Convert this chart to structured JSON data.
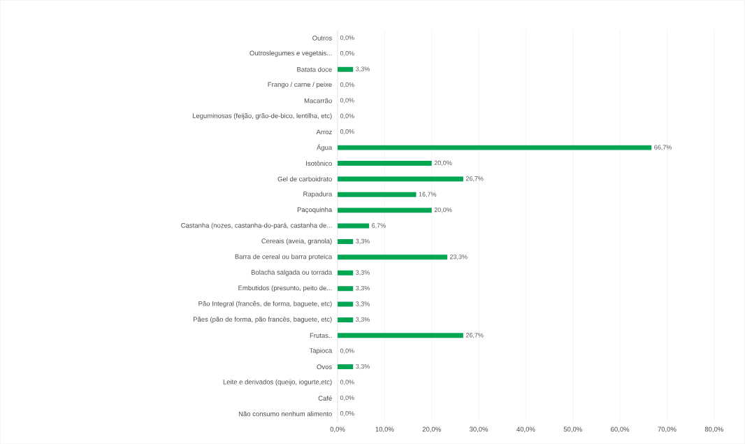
{
  "chart_data": {
    "type": "bar",
    "orientation": "horizontal",
    "color": "#00a651",
    "grid": "x",
    "categories": [
      "Outros",
      "Outroslegumes e vegetais...",
      "Batata doce",
      "Frango / carne / peixe",
      "Macarrão",
      "Leguminosas (feijão, grão-de-bico, lentilha, etc)",
      "Arroz",
      "Água",
      "Isotônico",
      "Gel de carboidrato",
      "Rapadura",
      "Paçoquinha",
      "Castanha (nozes, castanha-do-pará, castanha de...",
      "Cereais (aveia, granola)",
      "Barra de cereal ou barra proteica",
      "Bolacha salgada ou torrada",
      "Embutidos (presunto, peito de...",
      "Pão Integral (francês, de forma, baguete, etc)",
      "Pães (pão de forma, pão francês, baguete, etc)",
      "Frutas..",
      "Tapioca",
      "Ovos",
      "Leite e derivados (queijo, iogurte,etc)",
      "Café",
      "Não consumo nenhum alimento"
    ],
    "values": [
      0,
      0,
      3.3,
      0,
      0,
      0,
      0,
      66.7,
      20,
      26.7,
      16.7,
      20,
      6.7,
      3.3,
      23.3,
      3.3,
      3.3,
      3.3,
      3.3,
      26.7,
      0,
      3.3,
      0,
      0,
      0
    ],
    "value_labels": [
      "0,0%",
      "0,0%",
      "3,3%",
      "0,0%",
      "0,0%",
      "0,0%",
      "0,0%",
      "66,7%",
      "20,0%",
      "26,7%",
      "16,7%",
      "20,0%",
      "6,7%",
      "3,3%",
      "23,3%",
      "3,3%",
      "3,3%",
      "3,3%",
      "3,3%",
      "26,7%",
      "0,0%",
      "3,3%",
      "0,0%",
      "0,0%",
      "0,0%"
    ],
    "xlim": [
      0,
      80
    ],
    "xticks": [
      {
        "value": 0,
        "label": "0,0%"
      },
      {
        "value": 10,
        "label": "10,0%"
      },
      {
        "value": 20,
        "label": "20,0%"
      },
      {
        "value": 30,
        "label": "30,0%"
      },
      {
        "value": 40,
        "label": "40,0%"
      },
      {
        "value": 50,
        "label": "50,0%"
      },
      {
        "value": 60,
        "label": "60,0%"
      },
      {
        "value": 70,
        "label": "70,0%"
      },
      {
        "value": 80,
        "label": "80,0%"
      }
    ]
  }
}
